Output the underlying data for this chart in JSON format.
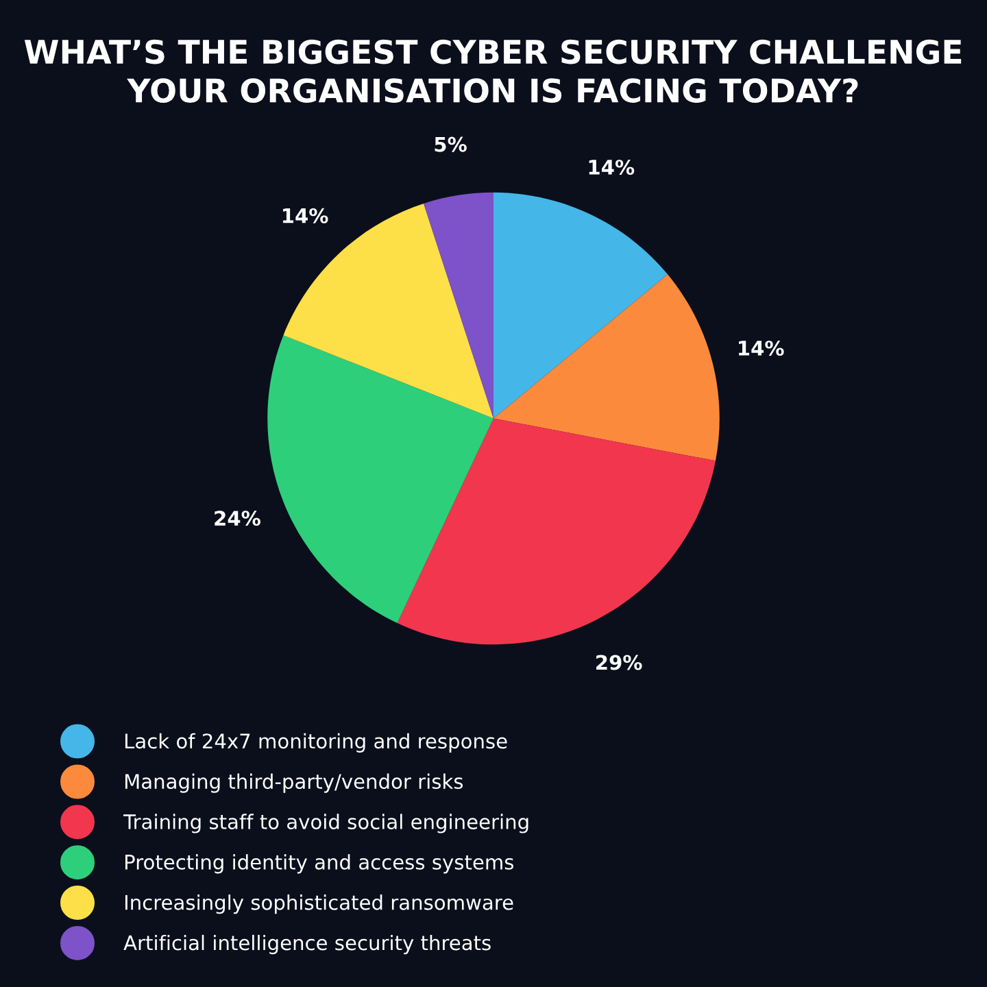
{
  "chart_data": {
    "type": "pie",
    "title": "WHAT’S THE BIGGEST CYBER SECURITY CHALLENGE\nYOUR ORGANISATION IS FACING TODAY?",
    "categories": [
      "Lack of 24x7 monitoring and response",
      "Managing third-party/vendor risks",
      "Training staff to avoid social engineering",
      "Protecting identity and access systems",
      "Increasingly sophisticated ransomware",
      "Artificial intelligence security threats"
    ],
    "values": [
      14,
      14,
      29,
      24,
      14,
      5
    ],
    "value_labels": [
      "14%",
      "14%",
      "29%",
      "24%",
      "14%",
      "5%"
    ],
    "colors": [
      "#45b6e8",
      "#fb8a3c",
      "#f2364e",
      "#2ecf7a",
      "#fde047",
      "#7e52c9"
    ],
    "legend": "bottom left"
  }
}
